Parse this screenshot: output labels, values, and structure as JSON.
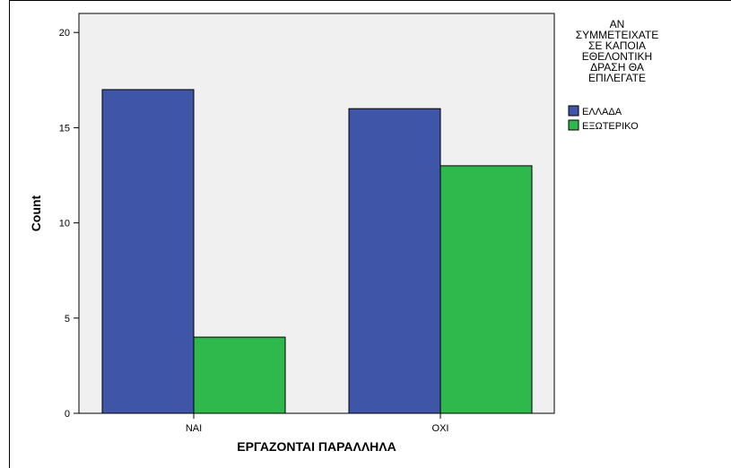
{
  "chart_data": {
    "type": "bar",
    "categories": [
      "ΝΑΙ",
      "ΟΧΙ"
    ],
    "series": [
      {
        "name": "ΕΛΛΑΔΑ",
        "values": [
          17,
          16
        ],
        "color": "#3e55a8"
      },
      {
        "name": "ΕΞΩΤΕΡΙΚΟ",
        "values": [
          4,
          13
        ],
        "color": "#2fb84b"
      }
    ],
    "xlabel": "ΕΡΓΑΖΟΝΤΑΙ ΠΑΡΑΛΛΗΛΑ",
    "ylabel": "Count",
    "ylim": [
      0,
      21
    ],
    "yticks": [
      0,
      5,
      10,
      15,
      20
    ],
    "legend": {
      "title_lines": [
        "ΑΝ",
        "ΣΥΜΜΕΤΕΙΧΑΤΕ",
        "ΣΕ ΚΑΠΟΙΑ",
        "ΕΘΕΛΟΝΤΙΚΗ",
        "ΔΡΑΣΗ ΘΑ",
        "ΕΠΙΛΕΓΑΤΕ"
      ],
      "placement": "right"
    },
    "plot_background": "#f0f0f0",
    "grid": false
  }
}
